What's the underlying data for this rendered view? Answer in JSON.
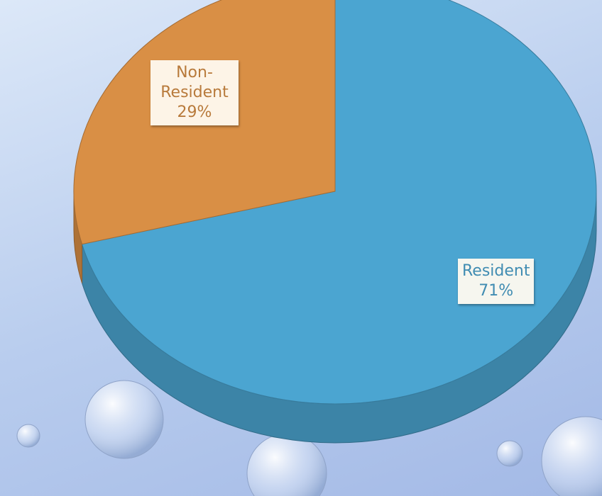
{
  "chart_data": {
    "type": "pie",
    "categories": [
      "Resident",
      "Non-Resident"
    ],
    "values": [
      71,
      29
    ],
    "value_labels": [
      "71%",
      "29%"
    ],
    "colors": [
      "#4ba5d1",
      "#d98f45"
    ]
  }
}
